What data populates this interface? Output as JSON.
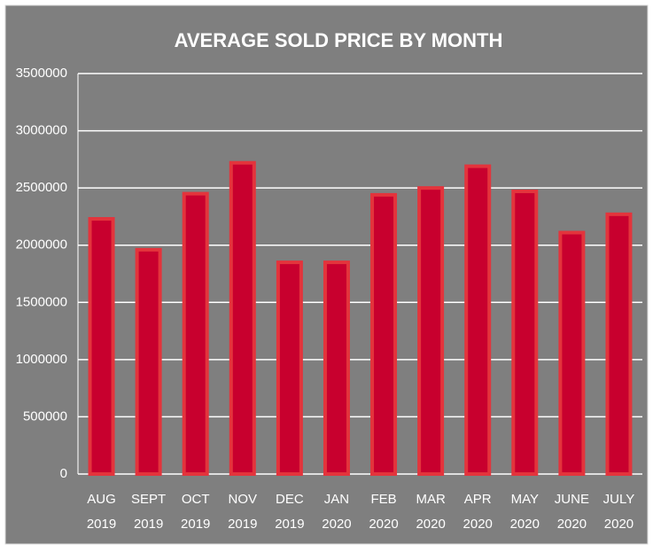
{
  "chart_data": {
    "type": "bar",
    "title": "AVERAGE SOLD PRICE BY MONTH",
    "categories": [
      [
        "AUG",
        "2019"
      ],
      [
        "SEPT",
        "2019"
      ],
      [
        "OCT",
        "2019"
      ],
      [
        "NOV",
        "2019"
      ],
      [
        "DEC",
        "2019"
      ],
      [
        "JAN",
        "2020"
      ],
      [
        "FEB",
        "2020"
      ],
      [
        "MAR",
        "2020"
      ],
      [
        "APR",
        "2020"
      ],
      [
        "MAY",
        "2020"
      ],
      [
        "JUNE",
        "2020"
      ],
      [
        "JULY",
        "2020"
      ]
    ],
    "values": [
      2230000,
      1960000,
      2450000,
      2720000,
      1850000,
      1850000,
      2440000,
      2500000,
      2690000,
      2470000,
      2110000,
      2270000
    ],
    "color": "#c8002e",
    "ylim": [
      0,
      3500000
    ],
    "yticks": [
      0,
      500000,
      1000000,
      1500000,
      2000000,
      2500000,
      3000000,
      3500000
    ],
    "grid": true
  }
}
